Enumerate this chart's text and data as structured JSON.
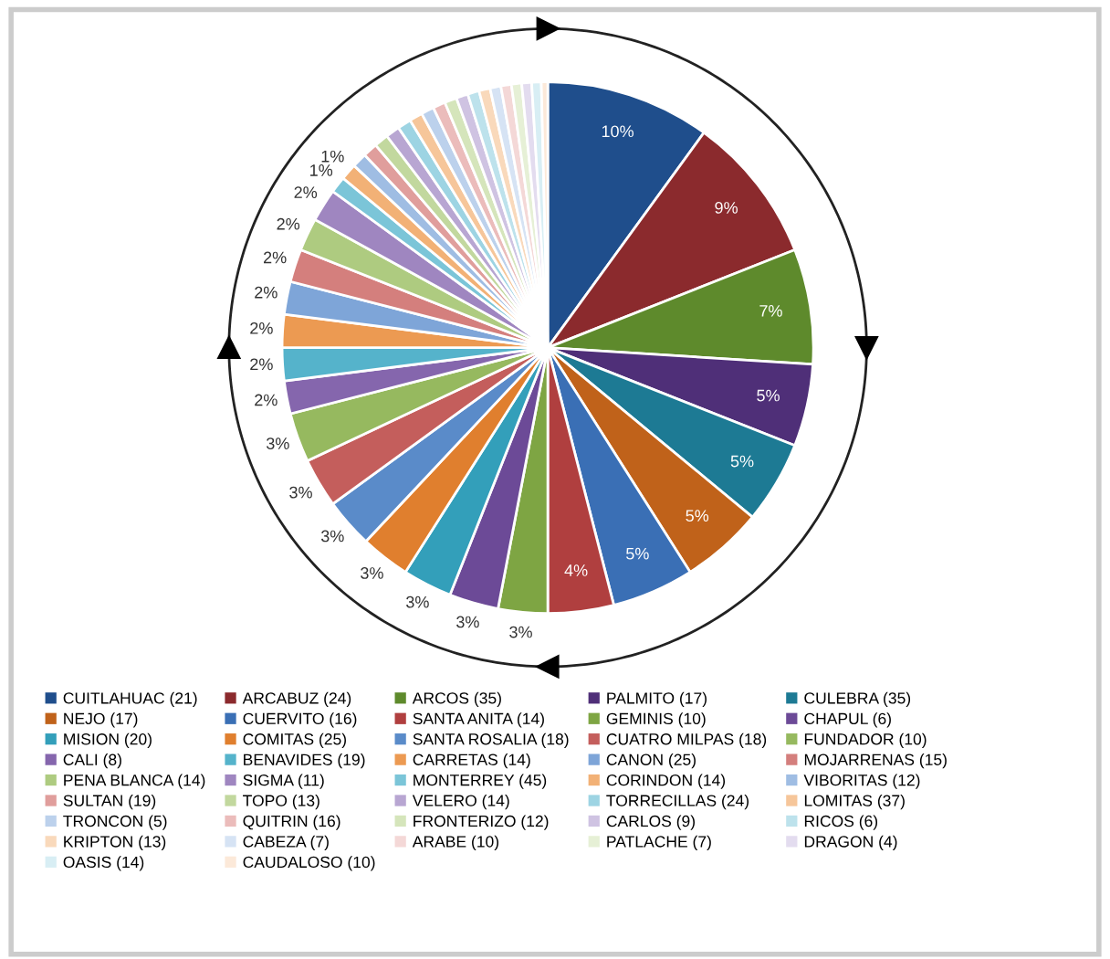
{
  "chart_data": {
    "type": "pie",
    "categories": [
      "CUITLAHUAC (21)",
      "ARCABUZ (24)",
      "ARCOS (35)",
      "PALMITO (17)",
      "CULEBRA (35)",
      "NEJO (17)",
      "CUERVITO (16)",
      "SANTA ANITA (14)",
      "GEMINIS (10)",
      "CHAPUL (6)",
      "MISION (20)",
      "COMITAS (25)",
      "SANTA ROSALIA (18)",
      "CUATRO MILPAS (18)",
      "FUNDADOR (10)",
      "CALI (8)",
      "BENAVIDES (19)",
      "CARRETAS (14)",
      "CANON (25)",
      "MOJARRENAS (15)",
      "PENA BLANCA (14)",
      "SIGMA (11)",
      "MONTERREY (45)",
      "CORINDON (14)",
      "VIBORITAS (12)",
      "SULTAN (19)",
      "TOPO (13)",
      "VELERO (14)",
      "TORRECILLAS (24)",
      "LOMITAS (37)",
      "TRONCON (5)",
      "QUITRIN (16)",
      "FRONTERIZO (12)",
      "CARLOS (9)",
      "RICOS (6)",
      "KRIPTON (13)",
      "CABEZA (7)",
      "ARABE (10)",
      "PATLACHE (7)",
      "DRAGON (4)",
      "OASIS (14)",
      "CAUDALOSO (10)"
    ],
    "values": [
      10,
      9,
      7,
      5,
      5,
      5,
      5,
      4,
      3,
      3,
      3,
      3,
      3,
      3,
      3,
      2,
      2,
      2,
      2,
      2,
      2,
      2,
      1,
      1,
      0.9,
      0.88,
      0.87,
      0.85,
      0.83,
      0.8,
      0.78,
      0.76,
      0.74,
      0.72,
      0.7,
      0.68,
      0.66,
      0.64,
      0.62,
      0.6,
      0.58,
      0.39
    ],
    "value_labels": [
      "10%",
      "9%",
      "7%",
      "5%",
      "5%",
      "5%",
      "5%",
      "4%",
      "3%",
      "3%",
      "3%",
      "3%",
      "3%",
      "3%",
      "3%",
      "2%",
      "2%",
      "2%",
      "2%",
      "2%",
      "2%",
      "2%",
      "1%",
      "1%",
      null,
      null,
      null,
      null,
      null,
      null,
      null,
      null,
      null,
      null,
      null,
      null,
      null,
      null,
      null,
      null,
      null,
      null
    ],
    "colors": [
      "#1f4e8c",
      "#8b2a2d",
      "#5e8a2c",
      "#4f2f78",
      "#1d7a94",
      "#c0621a",
      "#3a6fb5",
      "#b03f3f",
      "#7ea543",
      "#6c4a97",
      "#339fba",
      "#e07f2e",
      "#5a8bc9",
      "#c45e5c",
      "#96b95f",
      "#8566ad",
      "#55b3cb",
      "#ec9a52",
      "#7ea5d8",
      "#d47f7d",
      "#aecb80",
      "#9f86c0",
      "#7bc5d8",
      "#f2b176",
      "#9fbde3",
      "#e09e9c",
      "#c2d89e",
      "#b8a6d2",
      "#9dd4e3",
      "#f6c69a",
      "#bcd1ec",
      "#ebbcbb",
      "#d5e5bb",
      "#cfc3e2",
      "#bde2ec",
      "#f9d9bb",
      "#d6e3f4",
      "#f4d8d7",
      "#e6f0d6",
      "#e3dcef",
      "#d8eef4",
      "#fce9d9"
    ],
    "legend": "bottom"
  }
}
